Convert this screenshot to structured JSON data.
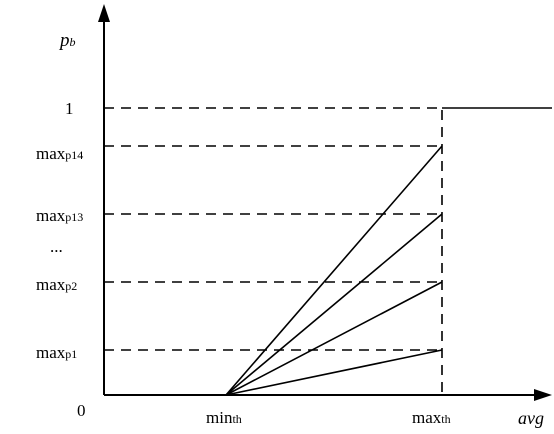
{
  "diagram": {
    "y_axis_label": {
      "main": "p",
      "sub": "b"
    },
    "x_axis_label": "avg",
    "origin_label": "0",
    "x_ticks": [
      {
        "main": "min",
        "sub": "th"
      },
      {
        "main": "max",
        "sub": "th"
      }
    ],
    "y_ticks": [
      {
        "main": "1",
        "sub": ""
      },
      {
        "main": "max",
        "sub": "p14"
      },
      {
        "main": "max",
        "sub": "p13"
      },
      {
        "main": "...",
        "sub": ""
      },
      {
        "main": "max",
        "sub": "p2"
      },
      {
        "main": "max",
        "sub": "p1"
      }
    ]
  }
}
